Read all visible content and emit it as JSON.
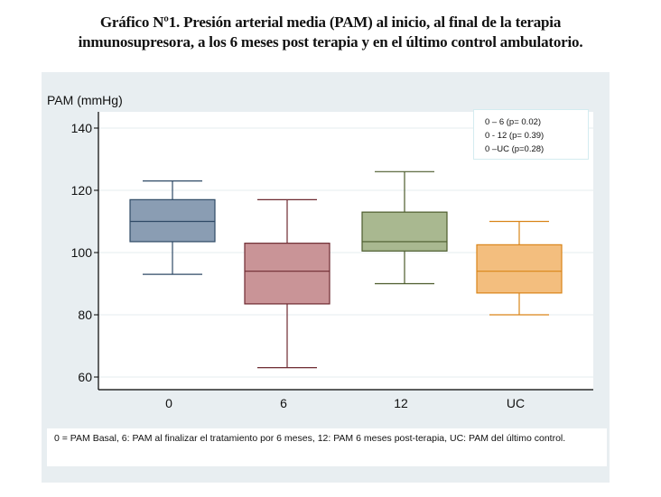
{
  "title_line1": "Gráfico Nº1.  Presión arterial media (PAM) al inicio, al final de la terapia",
  "title_line2": "inmunosupresora, a los 6 meses post terapia y en el último control ambulatorio.",
  "footnote": "0 = PAM  Basal, 6: PAM  al finalizar el tratamiento por 6 meses, 12: PAM 6 meses post-terapia, UC: PAM del último control.",
  "annotation": [
    "0 – 6  (p= 0.02)",
    "0 - 12 (p= 0.39)",
    "0 –UC (p=0.28)"
  ],
  "chart_data": {
    "type": "boxplot",
    "title": "Gráfico Nº1.  Presión arterial media (PAM) al inicio, al final de la terapia inmunosupresora, a los 6 meses post terapia y en el último control ambulatorio.",
    "ylabel": "PAM (mmHg)",
    "xlabel": "",
    "ylim": [
      57,
      143
    ],
    "yticks": [
      60,
      80,
      100,
      120,
      140
    ],
    "grid": true,
    "categories": [
      "0",
      "6",
      "12",
      "UC"
    ],
    "series": [
      {
        "name": "0",
        "whisker_low": 93,
        "q1": 103.5,
        "median": 110,
        "q3": 117,
        "whisker_high": 123,
        "fill": "#8a9db3",
        "stroke": "#2f4a66"
      },
      {
        "name": "6",
        "whisker_low": 63,
        "q1": 83.5,
        "median": 94,
        "q3": 103,
        "whisker_high": 117,
        "fill": "#c99497",
        "stroke": "#6e2a31"
      },
      {
        "name": "12",
        "whisker_low": 90,
        "q1": 100.5,
        "median": 103.5,
        "q3": 113,
        "whisker_high": 126,
        "fill": "#a9b890",
        "stroke": "#4c5c2c"
      },
      {
        "name": "UC",
        "whisker_low": 80,
        "q1": 87,
        "median": 94,
        "q3": 102.5,
        "whisker_high": 110,
        "fill": "#f3be7e",
        "stroke": "#d98418"
      }
    ],
    "annotations": [
      "0 – 6  (p= 0.02)",
      "0 - 12 (p= 0.39)",
      "0 –UC (p=0.28)"
    ]
  }
}
